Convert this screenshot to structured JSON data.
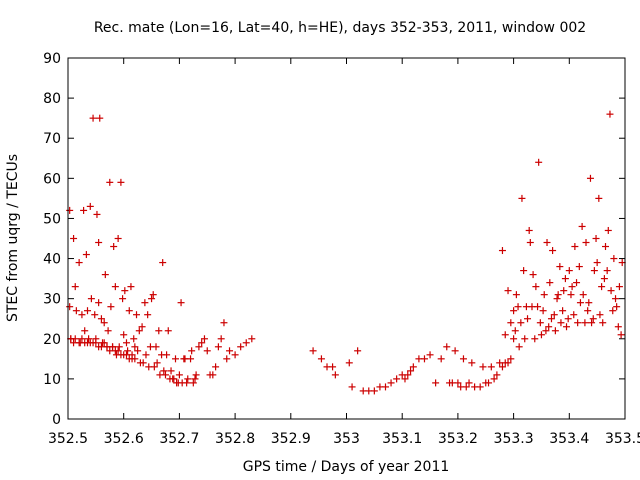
{
  "chart_data": {
    "type": "scatter",
    "title": "Rec. mate (Lon=16, Lat=40, h=HE), days 352-353, 2011, window 002",
    "xlabel": "GPS time / Days of year 2011",
    "ylabel": "STEC from uqrg / TECUs",
    "xlim": [
      352.5,
      353.5
    ],
    "ylim": [
      0,
      90
    ],
    "xticks": [
      "352.5",
      "352.6",
      "352.7",
      "352.8",
      "352.9",
      "353",
      "353.1",
      "353.2",
      "353.3",
      "353.4",
      "353.5"
    ],
    "yticks": [
      "0",
      "10",
      "20",
      "30",
      "40",
      "50",
      "60",
      "70",
      "80",
      "90"
    ],
    "grid": false,
    "marker": "plus",
    "color": "#cc0000",
    "series": [
      {
        "x": [
          352.503,
          352.503,
          352.505,
          352.51,
          352.513,
          352.515,
          352.52,
          352.522,
          352.525,
          352.528,
          352.53,
          352.533,
          352.535,
          352.537,
          352.54,
          352.542,
          352.545,
          352.548,
          352.55,
          352.552,
          352.555,
          352.555,
          352.557,
          352.56,
          352.562,
          352.565,
          352.567,
          352.57,
          352.572,
          352.575,
          352.577,
          352.58,
          352.582,
          352.585,
          352.587,
          352.59,
          352.592,
          352.595,
          352.598,
          352.6,
          352.602,
          352.605,
          352.607,
          352.61,
          352.613,
          352.615,
          352.618,
          352.62,
          352.623,
          352.625,
          352.628,
          352.63,
          352.633,
          352.635,
          352.638,
          352.64,
          352.643,
          352.645,
          352.648,
          352.65,
          352.653,
          352.655,
          352.658,
          352.66,
          352.663,
          352.665,
          352.668,
          352.67,
          352.672,
          352.675,
          352.677,
          352.68,
          352.683,
          352.685,
          352.688,
          352.69,
          352.693,
          352.695,
          352.698,
          352.7,
          352.703,
          352.705,
          352.708,
          352.71,
          352.713,
          352.715,
          352.72,
          352.722,
          352.725,
          352.728,
          352.73,
          352.735,
          352.74,
          352.745,
          352.75,
          352.755,
          352.76,
          352.765,
          352.77,
          352.775,
          352.78,
          352.785,
          352.79,
          352.8,
          352.81,
          352.82,
          352.83
        ],
        "y": [
          52,
          28,
          20,
          45,
          33,
          27,
          39,
          19,
          26,
          52,
          22,
          41,
          27,
          20,
          53,
          30,
          75,
          26,
          20,
          51,
          44,
          29,
          75,
          25,
          19,
          24,
          36,
          18,
          22,
          59,
          28,
          18,
          43,
          33,
          16,
          45,
          18,
          59,
          30,
          21,
          32,
          19,
          17,
          27,
          33,
          15,
          20,
          18,
          26,
          17,
          22,
          14,
          23,
          14,
          29,
          16,
          26,
          13,
          18,
          30,
          31,
          13,
          18,
          14,
          22,
          11,
          16,
          39,
          12,
          11,
          16,
          22,
          10,
          12,
          10,
          10,
          15,
          9,
          9,
          11,
          29,
          9,
          15,
          15,
          9,
          10,
          15,
          17,
          9,
          10,
          11,
          18,
          19,
          20,
          17,
          11,
          11,
          13,
          18,
          20,
          24,
          15,
          17,
          16,
          18,
          19,
          20
        ]
      },
      {
        "x": [
          352.94,
          352.955,
          352.965,
          352.975,
          352.98,
          353.005,
          353.01,
          353.02,
          353.03,
          353.04,
          353.05,
          353.06,
          353.07,
          353.08,
          353.09,
          353.1,
          353.105,
          353.11,
          353.115,
          353.12,
          353.13,
          353.14,
          353.15,
          353.16,
          353.17,
          353.18,
          353.185,
          353.19,
          353.195,
          353.2,
          353.205,
          353.21,
          353.215,
          353.22,
          353.225,
          353.23,
          353.24,
          353.245,
          353.25,
          353.255,
          353.26,
          353.265,
          353.27,
          353.275,
          353.28,
          353.285,
          353.29,
          353.295,
          353.3
        ],
        "y": [
          17,
          15,
          13,
          13,
          11,
          14,
          8,
          17,
          7,
          7,
          7,
          8,
          8,
          9,
          10,
          11,
          10,
          11,
          12,
          13,
          15,
          15,
          16,
          9,
          15,
          18,
          9,
          9,
          17,
          9,
          8,
          15,
          8,
          9,
          14,
          8,
          8,
          13,
          9,
          9,
          13,
          10,
          11,
          14,
          13,
          14,
          14,
          15,
          20
        ]
      },
      {
        "x": [
          352.505,
          352.51,
          352.513,
          352.52,
          352.525,
          352.53,
          352.535,
          352.54,
          352.545,
          352.55,
          352.555,
          352.56,
          352.565,
          352.57,
          352.575,
          352.58,
          352.585,
          352.59,
          352.595,
          352.6,
          352.605,
          352.61,
          352.615,
          352.62
        ],
        "y": [
          20,
          19,
          20,
          19,
          20,
          19,
          19,
          19,
          19,
          19,
          18,
          18,
          19,
          18,
          17,
          18,
          17,
          17,
          16,
          16,
          16,
          15,
          16,
          15
        ]
      },
      {
        "x": [
          353.28,
          353.285,
          353.29,
          353.295,
          353.3,
          353.303,
          353.305,
          353.308,
          353.31,
          353.313,
          353.315,
          353.318,
          353.32,
          353.323,
          353.325,
          353.328,
          353.33,
          353.333,
          353.335,
          353.338,
          353.34,
          353.343,
          353.345,
          353.348,
          353.35,
          353.353,
          353.355,
          353.358,
          353.36,
          353.363,
          353.365,
          353.368,
          353.37,
          353.373,
          353.375,
          353.378,
          353.38,
          353.383,
          353.385,
          353.388,
          353.39,
          353.393,
          353.395,
          353.398,
          353.4,
          353.403,
          353.405,
          353.408,
          353.41,
          353.413,
          353.415,
          353.418,
          353.42,
          353.423,
          353.425,
          353.428,
          353.43,
          353.433,
          353.435,
          353.438,
          353.44,
          353.443,
          353.445,
          353.448,
          353.45,
          353.453,
          353.455,
          353.458,
          353.46,
          353.463,
          353.465,
          353.468,
          353.47,
          353.473,
          353.475,
          353.478,
          353.48,
          353.483,
          353.485,
          353.488,
          353.49,
          353.493,
          353.495
        ],
        "y": [
          42,
          21,
          32,
          24,
          27,
          22,
          31,
          28,
          18,
          24,
          55,
          37,
          20,
          28,
          25,
          47,
          44,
          28,
          36,
          20,
          33,
          28,
          64,
          24,
          21,
          27,
          31,
          22,
          44,
          23,
          34,
          25,
          42,
          26,
          22,
          30,
          31,
          38,
          24,
          27,
          32,
          35,
          23,
          25,
          37,
          31,
          33,
          26,
          43,
          34,
          24,
          38,
          29,
          48,
          31,
          24,
          44,
          27,
          29,
          60,
          24,
          25,
          37,
          45,
          39,
          55,
          26,
          33,
          24,
          35,
          43,
          37,
          47,
          76,
          32,
          27,
          40,
          30,
          28,
          23,
          33,
          21,
          39
        ]
      }
    ]
  }
}
